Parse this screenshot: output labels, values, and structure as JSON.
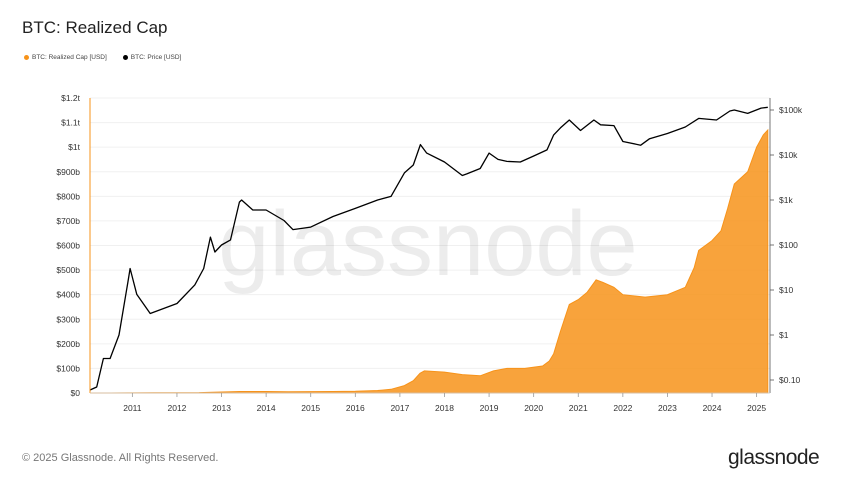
{
  "chart_data": {
    "type": "area",
    "title": "BTC: Realized Cap",
    "legend_placement": "top-left",
    "grid": true,
    "x_ticks": [
      "2011",
      "2012",
      "2013",
      "2014",
      "2015",
      "2016",
      "2017",
      "2018",
      "2019",
      "2020",
      "2021",
      "2022",
      "2023",
      "2024",
      "2025"
    ],
    "x_range": [
      2010.55,
      2025.8
    ],
    "y_left": {
      "ticks": [
        "$0",
        "$100b",
        "$200b",
        "$300b",
        "$400b",
        "$500b",
        "$600b",
        "$700b",
        "$800b",
        "$900b",
        "$1t",
        "$1.1t",
        "$1.2t"
      ],
      "ylim": [
        0,
        1200000000000.0
      ],
      "unit": "USD"
    },
    "y_right": {
      "scale": "log",
      "ticks": [
        "$0.10",
        "$1",
        "$10",
        "$100",
        "$1k",
        "$10k",
        "$100k"
      ],
      "tick_values": [
        0.1,
        1,
        10,
        100,
        1000,
        10000,
        100000
      ]
    },
    "series": [
      {
        "name": "BTC: Realized Cap [USD]",
        "color": "#f7931a",
        "axis": "left",
        "style": "area",
        "x": [
          2010.55,
          2011.0,
          2011.5,
          2012.0,
          2013.0,
          2013.9,
          2014.5,
          2015.0,
          2016.0,
          2016.5,
          2017.0,
          2017.3,
          2017.6,
          2017.8,
          2017.95,
          2018.05,
          2018.5,
          2018.9,
          2019.3,
          2019.6,
          2019.9,
          2020.3,
          2020.7,
          2020.85,
          2020.95,
          2021.1,
          2021.3,
          2021.5,
          2021.7,
          2021.9,
          2022.05,
          2022.3,
          2022.5,
          2023.0,
          2023.5,
          2023.9,
          2024.1,
          2024.2,
          2024.5,
          2024.7,
          2024.85,
          2025.0,
          2025.3,
          2025.5,
          2025.65,
          2025.75
        ],
        "values": [
          0,
          100000000.0,
          500000000.0,
          800000000.0,
          1500000000.0,
          6000000000.0,
          6000000000.0,
          5000000000.0,
          6000000000.0,
          7000000000.0,
          10000000000.0,
          15000000000.0,
          30000000000.0,
          50000000000.0,
          80000000000.0,
          90000000000.0,
          85000000000.0,
          75000000000.0,
          70000000000.0,
          90000000000.0,
          100000000000.0,
          100000000000.0,
          110000000000.0,
          130000000000.0,
          160000000000.0,
          250000000000.0,
          360000000000.0,
          380000000000.0,
          410000000000.0,
          460000000000.0,
          450000000000.0,
          430000000000.0,
          400000000000.0,
          390000000000.0,
          400000000000.0,
          430000000000.0,
          510000000000.0,
          580000000000.0,
          620000000000.0,
          660000000000.0,
          750000000000.0,
          850000000000.0,
          900000000000.0,
          1000000000000.0,
          1050000000000.0,
          1070000000000.0
        ]
      },
      {
        "name": "BTC: Price [USD]",
        "color": "#000000",
        "axis": "right",
        "style": "line",
        "x": [
          2010.55,
          2010.7,
          2010.85,
          2011.0,
          2011.2,
          2011.4,
          2011.45,
          2011.6,
          2011.9,
          2012.5,
          2012.9,
          2013.1,
          2013.25,
          2013.35,
          2013.5,
          2013.7,
          2013.9,
          2013.95,
          2014.2,
          2014.5,
          2014.9,
          2015.1,
          2015.5,
          2016.0,
          2016.5,
          2017.0,
          2017.3,
          2017.6,
          2017.8,
          2017.96,
          2018.1,
          2018.5,
          2018.9,
          2019.0,
          2019.3,
          2019.5,
          2019.7,
          2019.9,
          2020.2,
          2020.5,
          2020.8,
          2020.95,
          2021.1,
          2021.3,
          2021.55,
          2021.85,
          2022.0,
          2022.3,
          2022.5,
          2022.9,
          2023.1,
          2023.5,
          2023.9,
          2024.2,
          2024.6,
          2024.9,
          2025.0,
          2025.3,
          2025.6,
          2025.75
        ],
        "values": [
          0.06,
          0.07,
          0.3,
          0.3,
          1,
          15,
          30,
          8,
          3,
          5,
          13,
          30,
          150,
          70,
          100,
          130,
          900,
          1000,
          600,
          600,
          350,
          220,
          250,
          430,
          650,
          1000,
          1200,
          4000,
          6000,
          17000,
          11000,
          7000,
          3500,
          3800,
          5000,
          11000,
          8000,
          7200,
          7000,
          9500,
          13000,
          28000,
          40000,
          60000,
          35000,
          60000,
          47000,
          45000,
          20000,
          16500,
          23000,
          30000,
          42000,
          65000,
          60000,
          95000,
          100000,
          84000,
          110000,
          115000
        ]
      }
    ]
  },
  "footer": {
    "copyright": "© 2025 Glassnode. All Rights Reserved.",
    "brand": "glassnode"
  },
  "watermark": "glassnode"
}
